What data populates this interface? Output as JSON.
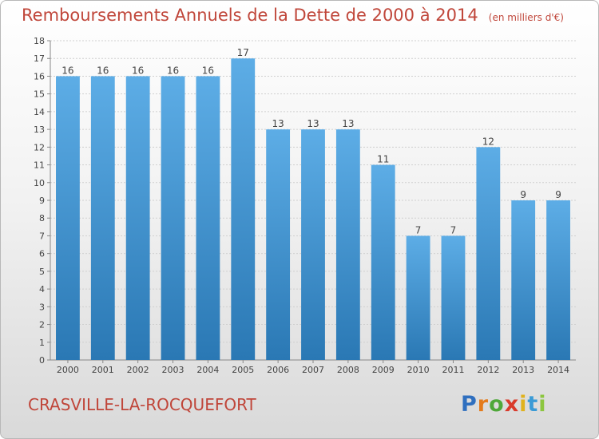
{
  "chart_data": {
    "type": "bar",
    "title": "Remboursements Annuels de la Dette de 2000 à 2014",
    "units_note": "(en milliers d'€)",
    "categories": [
      "2000",
      "2001",
      "2002",
      "2003",
      "2004",
      "2005",
      "2006",
      "2007",
      "2008",
      "2009",
      "2010",
      "2011",
      "2012",
      "2013",
      "2014"
    ],
    "values": [
      16,
      16,
      16,
      16,
      16,
      17,
      13,
      13,
      13,
      11,
      7,
      7,
      12,
      9,
      9
    ],
    "ylim": [
      0,
      18
    ],
    "yticks": [
      0,
      1,
      2,
      3,
      4,
      5,
      6,
      7,
      8,
      9,
      10,
      11,
      12,
      13,
      14,
      15,
      16,
      17,
      18
    ],
    "grid": true,
    "colors": {
      "bar_top": "#5dade6",
      "bar_bottom": "#2a78b4",
      "title": "#c0463a",
      "grid": "#d0d0d0"
    }
  },
  "footer": {
    "commune": "CRASVILLE-LA-ROCQUEFORT",
    "logo_letters": [
      {
        "ch": "P",
        "color": "#2f6fbf"
      },
      {
        "ch": "r",
        "color": "#e47b1c"
      },
      {
        "ch": "o",
        "color": "#4fa83a"
      },
      {
        "ch": "x",
        "color": "#d93a2b"
      },
      {
        "ch": "i",
        "color": "#e0b21d"
      },
      {
        "ch": "t",
        "color": "#3a9bd6"
      },
      {
        "ch": "i",
        "color": "#8cc63f"
      }
    ]
  }
}
